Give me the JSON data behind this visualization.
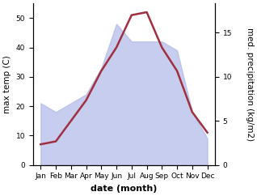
{
  "months": [
    "Jan",
    "Feb",
    "Mar",
    "Apr",
    "May",
    "Jun",
    "Jul",
    "Aug",
    "Sep",
    "Oct",
    "Nov",
    "Dec"
  ],
  "temp_line": [
    7,
    8,
    15,
    22,
    32,
    40,
    51,
    52,
    40,
    32,
    18,
    11
  ],
  "precip_area": [
    7,
    6,
    7,
    8,
    11,
    16,
    14,
    14,
    14,
    13,
    6,
    3
  ],
  "temp_ylim": [
    0,
    55
  ],
  "precip_ylim": [
    0,
    18.33
  ],
  "temp_yticks": [
    0,
    10,
    20,
    30,
    40,
    50
  ],
  "precip_yticks": [
    0,
    5,
    10,
    15
  ],
  "temp_ylabel": "max temp (C)",
  "precip_ylabel": "med. precipitation (kg/m2)",
  "xlabel": "date (month)",
  "line_color": "#a03040",
  "fill_color": "#b0b8e8",
  "fill_alpha": 0.7,
  "label_fontsize": 7.5,
  "tick_fontsize": 6.5,
  "xlabel_fontsize": 8,
  "linewidth": 1.8
}
